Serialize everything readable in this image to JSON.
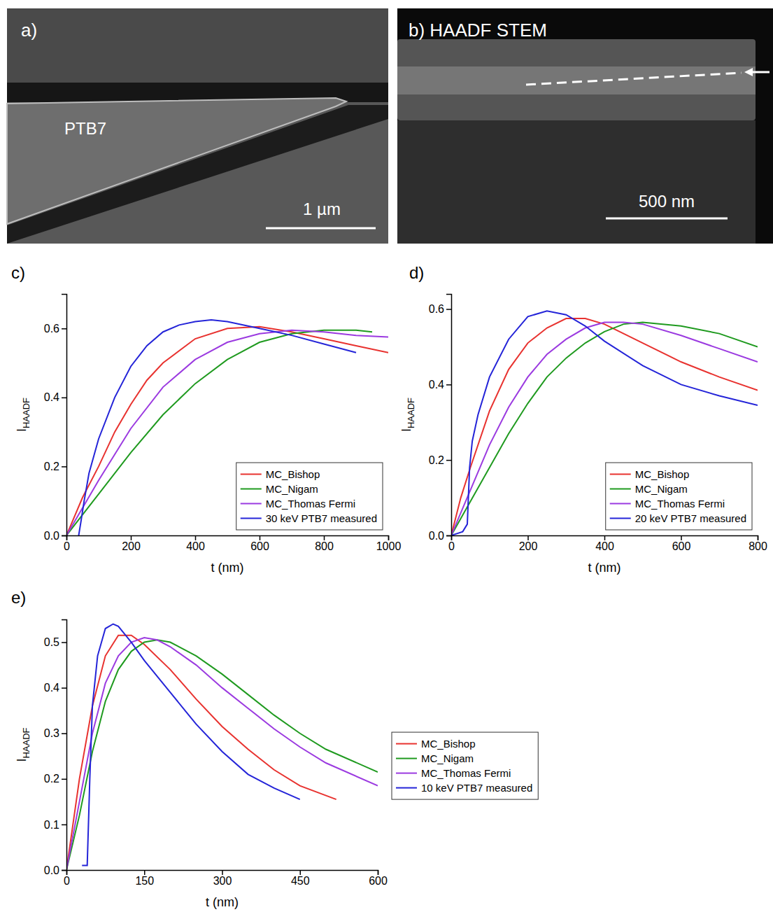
{
  "images": [
    {
      "label": "a)",
      "texts": [
        "PTB7"
      ],
      "scale_bar": "1 µm"
    },
    {
      "label": "b) HAADF STEM",
      "scale_bar": "500 nm"
    }
  ],
  "chart_data": [
    {
      "label": "c)",
      "type": "line",
      "x_label": "t (nm)",
      "y_label": "I",
      "y_label_subscript": "HAADF",
      "xlim": [
        0,
        1000
      ],
      "xticks": [
        0,
        200,
        400,
        600,
        800,
        1000
      ],
      "ylim": [
        0,
        0.7
      ],
      "yticks": [
        {
          "value": 0,
          "label": "0.0"
        },
        0.2,
        0.4,
        0.6
      ],
      "legend": "lower right",
      "series": [
        {
          "name": "MC_Bishop",
          "color": "#e8322f",
          "x": [
            0,
            50,
            100,
            150,
            200,
            250,
            300,
            400,
            500,
            600,
            700,
            800,
            900,
            1000
          ],
          "values": [
            0,
            0.11,
            0.2,
            0.3,
            0.38,
            0.45,
            0.5,
            0.57,
            0.6,
            0.605,
            0.59,
            0.57,
            0.55,
            0.53
          ]
        },
        {
          "name": "MC_Nigam",
          "color": "#1f9a1f",
          "x": [
            0,
            100,
            200,
            300,
            400,
            500,
            600,
            700,
            800,
            900,
            950
          ],
          "values": [
            0,
            0.12,
            0.24,
            0.35,
            0.44,
            0.51,
            0.56,
            0.585,
            0.595,
            0.595,
            0.59
          ]
        },
        {
          "name": "MC_Thomas Fermi",
          "color": "#9b3ae0",
          "x": [
            0,
            100,
            200,
            300,
            400,
            500,
            600,
            700,
            800,
            900,
            1000
          ],
          "values": [
            0,
            0.16,
            0.31,
            0.43,
            0.51,
            0.56,
            0.585,
            0.595,
            0.59,
            0.58,
            0.575
          ]
        },
        {
          "name": "30 keV PTB7 measured",
          "color": "#2424d8",
          "x": [
            38,
            45,
            55,
            70,
            100,
            150,
            200,
            250,
            300,
            350,
            400,
            450,
            500,
            600,
            700,
            800,
            900
          ],
          "values": [
            0,
            0.04,
            0.1,
            0.18,
            0.28,
            0.4,
            0.49,
            0.55,
            0.59,
            0.61,
            0.62,
            0.625,
            0.62,
            0.6,
            0.58,
            0.555,
            0.53
          ]
        }
      ]
    },
    {
      "label": "d)",
      "type": "line",
      "x_label": "t (nm)",
      "y_label": "I",
      "y_label_subscript": "HAADF",
      "xlim": [
        0,
        800
      ],
      "xticks": [
        0,
        200,
        400,
        600,
        800
      ],
      "ylim": [
        0,
        0.64
      ],
      "yticks": [
        {
          "value": 0,
          "label": "0.0"
        },
        0.2,
        0.4,
        0.6
      ],
      "legend": "lower right",
      "series": [
        {
          "name": "MC_Bishop",
          "color": "#e8322f",
          "x": [
            0,
            25,
            50,
            100,
            150,
            200,
            250,
            300,
            350,
            400,
            450,
            500,
            600,
            700,
            800
          ],
          "values": [
            0,
            0.1,
            0.18,
            0.33,
            0.44,
            0.51,
            0.55,
            0.575,
            0.575,
            0.56,
            0.535,
            0.51,
            0.46,
            0.42,
            0.385
          ]
        },
        {
          "name": "MC_Nigam",
          "color": "#1f9a1f",
          "x": [
            0,
            50,
            100,
            150,
            200,
            250,
            300,
            350,
            400,
            450,
            500,
            600,
            700,
            800
          ],
          "values": [
            0,
            0.09,
            0.18,
            0.27,
            0.35,
            0.42,
            0.47,
            0.51,
            0.54,
            0.56,
            0.565,
            0.555,
            0.535,
            0.5
          ]
        },
        {
          "name": "MC_Thomas Fermi",
          "color": "#9b3ae0",
          "x": [
            0,
            50,
            100,
            150,
            200,
            250,
            300,
            350,
            400,
            450,
            500,
            600,
            700,
            800
          ],
          "values": [
            0,
            0.12,
            0.24,
            0.34,
            0.42,
            0.48,
            0.52,
            0.55,
            0.565,
            0.565,
            0.56,
            0.53,
            0.495,
            0.46
          ]
        },
        {
          "name": "20 keV PTB7 measured",
          "color": "#2424d8",
          "x": [
            0,
            30,
            42,
            48,
            55,
            70,
            100,
            150,
            200,
            250,
            300,
            350,
            400,
            500,
            600,
            700,
            800
          ],
          "values": [
            0,
            0.01,
            0.03,
            0.18,
            0.25,
            0.32,
            0.42,
            0.52,
            0.58,
            0.595,
            0.585,
            0.555,
            0.515,
            0.45,
            0.4,
            0.37,
            0.345
          ]
        }
      ]
    },
    {
      "label": "e)",
      "type": "line",
      "x_label": "t (nm)",
      "y_label": "I",
      "y_label_subscript": "HAADF",
      "xlim": [
        0,
        600
      ],
      "xticks": [
        0,
        150,
        300,
        450,
        600
      ],
      "ylim": [
        0,
        0.55
      ],
      "yticks": [
        {
          "value": 0,
          "label": "0.0"
        },
        0.1,
        0.2,
        0.3,
        0.4,
        0.5
      ],
      "legend": "right",
      "series": [
        {
          "name": "MC_Bishop",
          "color": "#e8322f",
          "x": [
            0,
            25,
            50,
            75,
            100,
            125,
            150,
            200,
            250,
            300,
            350,
            400,
            450,
            520
          ],
          "values": [
            0,
            0.2,
            0.36,
            0.47,
            0.515,
            0.515,
            0.495,
            0.44,
            0.375,
            0.315,
            0.265,
            0.22,
            0.185,
            0.155
          ]
        },
        {
          "name": "MC_Nigam",
          "color": "#1f9a1f",
          "x": [
            0,
            25,
            50,
            75,
            100,
            125,
            150,
            175,
            200,
            250,
            300,
            350,
            400,
            450,
            500,
            600
          ],
          "values": [
            0,
            0.12,
            0.26,
            0.37,
            0.44,
            0.48,
            0.5,
            0.505,
            0.5,
            0.47,
            0.43,
            0.385,
            0.34,
            0.3,
            0.265,
            0.215
          ]
        },
        {
          "name": "MC_Thomas Fermi",
          "color": "#9b3ae0",
          "x": [
            0,
            25,
            50,
            75,
            100,
            125,
            150,
            175,
            200,
            250,
            300,
            350,
            400,
            450,
            500,
            600
          ],
          "values": [
            0,
            0.15,
            0.3,
            0.41,
            0.47,
            0.5,
            0.51,
            0.505,
            0.49,
            0.45,
            0.4,
            0.355,
            0.31,
            0.27,
            0.235,
            0.185
          ]
        },
        {
          "name": "10 keV PTB7 measured",
          "color": "#2424d8",
          "x": [
            30,
            40,
            45,
            50,
            60,
            75,
            90,
            100,
            125,
            150,
            200,
            250,
            300,
            350,
            400,
            450
          ],
          "values": [
            0.01,
            0.01,
            0.2,
            0.36,
            0.47,
            0.53,
            0.54,
            0.535,
            0.5,
            0.46,
            0.39,
            0.32,
            0.26,
            0.21,
            0.18,
            0.155
          ]
        }
      ]
    }
  ]
}
